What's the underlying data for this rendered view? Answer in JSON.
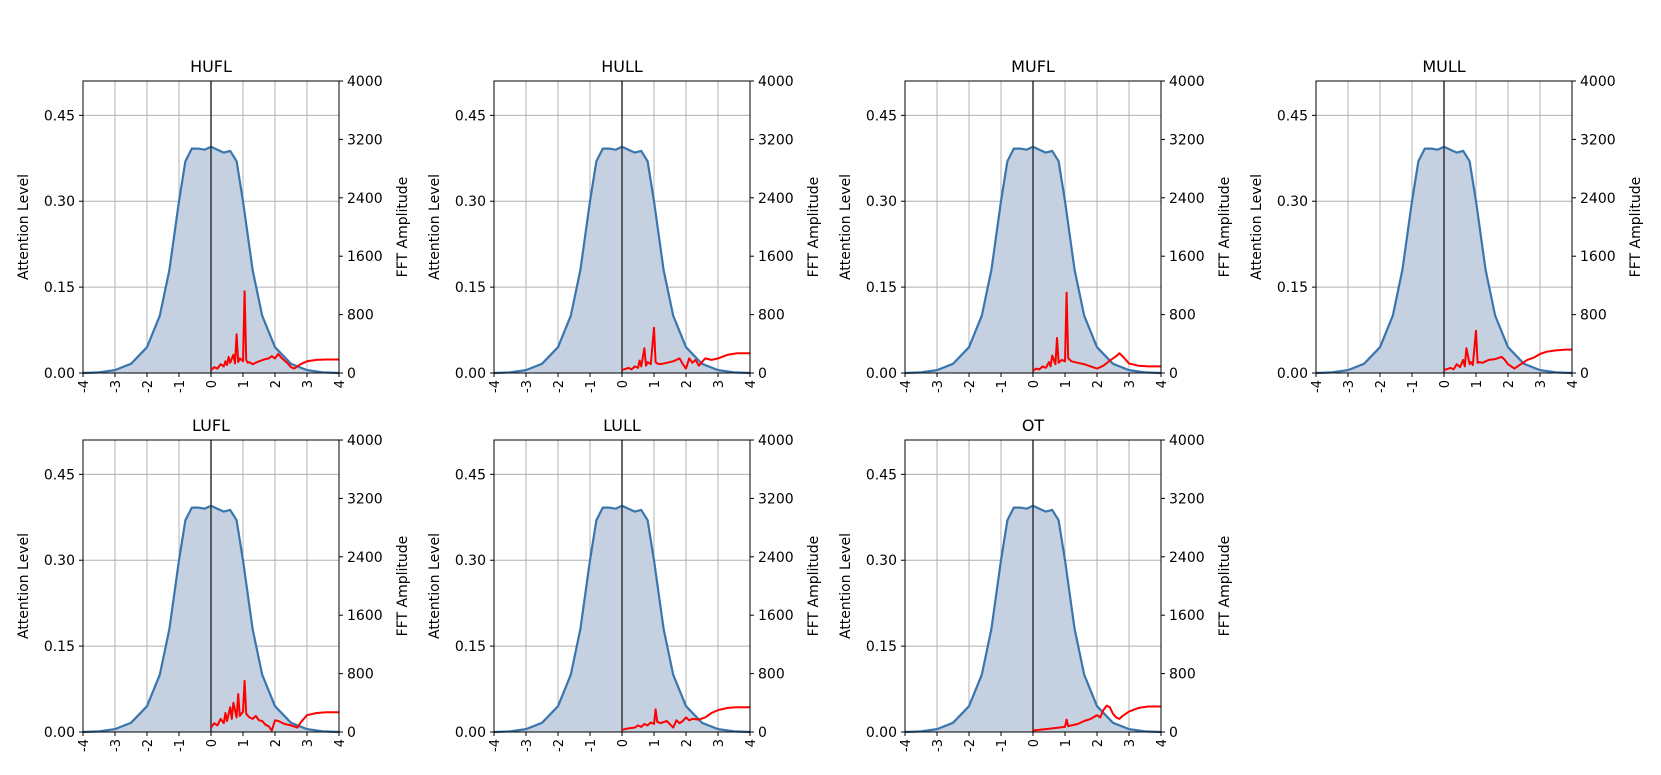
{
  "colors": {
    "attention_line": "#3a76ae",
    "attention_fill": "#c5d0e0",
    "fft_line": "#ff0000",
    "grid": "#b0b0b0",
    "zero_line": "#333333"
  },
  "chart_data": [
    {
      "type": "area",
      "title": "HUFL",
      "ylabel": "Attention Level",
      "y2label": "FFT Amplitude",
      "xlim": [
        -4,
        4
      ],
      "ylim": [
        0,
        0.51
      ],
      "y2lim": [
        0,
        4000
      ],
      "xticks": [
        "-4",
        "-3",
        "-2",
        "-1",
        "0",
        "1",
        "2",
        "3",
        "4"
      ],
      "yticks": [
        "0.00",
        "0.15",
        "0.30",
        "0.45"
      ],
      "y2ticks": [
        "0",
        "800",
        "1600",
        "2400",
        "3200",
        "4000"
      ],
      "grid": true,
      "attention": {
        "peak": 0.395,
        "x": [
          -4.0,
          -3.5,
          -3.0,
          -2.5,
          -2.0,
          -1.6,
          -1.3,
          -1.0,
          -0.8,
          -0.6,
          -0.4,
          -0.2,
          0.0,
          0.2,
          0.4,
          0.6,
          0.8,
          1.0,
          1.3,
          1.6,
          2.0,
          2.5,
          3.0,
          3.5,
          4.0
        ],
        "y": [
          0.0,
          0.001,
          0.005,
          0.016,
          0.045,
          0.1,
          0.18,
          0.3,
          0.37,
          0.392,
          0.392,
          0.39,
          0.395,
          0.39,
          0.385,
          0.388,
          0.37,
          0.3,
          0.18,
          0.1,
          0.045,
          0.016,
          0.005,
          0.001,
          0.0
        ]
      },
      "fft": {
        "x": [
          0.0,
          0.1,
          0.2,
          0.3,
          0.4,
          0.45,
          0.5,
          0.55,
          0.6,
          0.7,
          0.75,
          0.8,
          0.85,
          0.9,
          1.0,
          1.05,
          1.1,
          1.15,
          1.2,
          1.3,
          1.5,
          1.7,
          1.8,
          1.9,
          2.0,
          2.1,
          2.2,
          2.3,
          2.4,
          2.5,
          2.6,
          2.8,
          3.0,
          3.3,
          3.6,
          4.0
        ],
        "y": [
          40,
          80,
          60,
          120,
          90,
          160,
          110,
          220,
          140,
          250,
          130,
          530,
          150,
          200,
          160,
          1120,
          180,
          140,
          150,
          120,
          160,
          190,
          200,
          230,
          200,
          260,
          210,
          170,
          130,
          80,
          60,
          120,
          160,
          180,
          185,
          185
        ]
      }
    },
    {
      "type": "area",
      "title": "HULL",
      "ylabel": "Attention Level",
      "y2label": "FFT Amplitude",
      "xlim": [
        -4,
        4
      ],
      "ylim": [
        0,
        0.51
      ],
      "y2lim": [
        0,
        4000
      ],
      "xticks": [
        "-4",
        "-3",
        "-2",
        "-1",
        "0",
        "1",
        "2",
        "3",
        "4"
      ],
      "yticks": [
        "0.00",
        "0.15",
        "0.30",
        "0.45"
      ],
      "y2ticks": [
        "0",
        "800",
        "1600",
        "2400",
        "3200",
        "4000"
      ],
      "grid": true,
      "attention": {
        "peak": 0.395,
        "x": [
          -4.0,
          -3.5,
          -3.0,
          -2.5,
          -2.0,
          -1.6,
          -1.3,
          -1.0,
          -0.8,
          -0.6,
          -0.4,
          -0.2,
          0.0,
          0.2,
          0.4,
          0.6,
          0.8,
          1.0,
          1.3,
          1.6,
          2.0,
          2.5,
          3.0,
          3.5,
          4.0
        ],
        "y": [
          0.0,
          0.001,
          0.005,
          0.016,
          0.045,
          0.1,
          0.18,
          0.3,
          0.37,
          0.392,
          0.392,
          0.39,
          0.395,
          0.39,
          0.385,
          0.388,
          0.37,
          0.3,
          0.18,
          0.1,
          0.045,
          0.016,
          0.005,
          0.001,
          0.0
        ]
      },
      "fft": {
        "x": [
          0.0,
          0.2,
          0.3,
          0.4,
          0.5,
          0.55,
          0.6,
          0.7,
          0.75,
          0.8,
          0.9,
          1.0,
          1.05,
          1.1,
          1.2,
          1.4,
          1.6,
          1.8,
          1.9,
          2.0,
          2.1,
          2.2,
          2.3,
          2.4,
          2.5,
          2.6,
          2.8,
          3.0,
          3.3,
          3.6,
          4.0
        ],
        "y": [
          40,
          70,
          50,
          90,
          70,
          170,
          90,
          340,
          100,
          150,
          120,
          620,
          150,
          130,
          120,
          140,
          160,
          200,
          120,
          60,
          200,
          140,
          180,
          100,
          150,
          200,
          180,
          200,
          250,
          270,
          270
        ]
      }
    },
    {
      "type": "area",
      "title": "MUFL",
      "ylabel": "Attention Level",
      "y2label": "FFT Amplitude",
      "xlim": [
        -4,
        4
      ],
      "ylim": [
        0,
        0.51
      ],
      "y2lim": [
        0,
        4000
      ],
      "xticks": [
        "-4",
        "-3",
        "-2",
        "-1",
        "0",
        "1",
        "2",
        "3",
        "4"
      ],
      "yticks": [
        "0.00",
        "0.15",
        "0.30",
        "0.45"
      ],
      "y2ticks": [
        "0",
        "800",
        "1600",
        "2400",
        "3200",
        "4000"
      ],
      "grid": true,
      "attention": {
        "peak": 0.395,
        "x": [
          -4.0,
          -3.5,
          -3.0,
          -2.5,
          -2.0,
          -1.6,
          -1.3,
          -1.0,
          -0.8,
          -0.6,
          -0.4,
          -0.2,
          0.0,
          0.2,
          0.4,
          0.6,
          0.8,
          1.0,
          1.3,
          1.6,
          2.0,
          2.5,
          3.0,
          3.5,
          4.0
        ],
        "y": [
          0.0,
          0.001,
          0.005,
          0.016,
          0.045,
          0.1,
          0.18,
          0.3,
          0.37,
          0.392,
          0.392,
          0.39,
          0.395,
          0.39,
          0.385,
          0.388,
          0.37,
          0.3,
          0.18,
          0.1,
          0.045,
          0.016,
          0.005,
          0.001,
          0.0
        ]
      },
      "fft": {
        "x": [
          0.0,
          0.1,
          0.2,
          0.3,
          0.4,
          0.5,
          0.55,
          0.6,
          0.7,
          0.75,
          0.8,
          0.9,
          1.0,
          1.05,
          1.1,
          1.2,
          1.4,
          1.6,
          1.8,
          2.0,
          2.2,
          2.4,
          2.6,
          2.7,
          2.8,
          3.0,
          3.3,
          3.6,
          4.0
        ],
        "y": [
          30,
          60,
          50,
          90,
          70,
          150,
          90,
          240,
          120,
          480,
          140,
          180,
          160,
          1100,
          200,
          160,
          140,
          120,
          90,
          60,
          100,
          170,
          230,
          270,
          230,
          130,
          100,
          90,
          90
        ]
      }
    },
    {
      "type": "area",
      "title": "MULL",
      "ylabel": "Attention Level",
      "y2label": "FFT Amplitude",
      "xlim": [
        -4,
        4
      ],
      "ylim": [
        0,
        0.51
      ],
      "y2lim": [
        0,
        4000
      ],
      "xticks": [
        "-4",
        "-3",
        "-2",
        "-1",
        "0",
        "1",
        "2",
        "3",
        "4"
      ],
      "yticks": [
        "0.00",
        "0.15",
        "0.30",
        "0.45"
      ],
      "y2ticks": [
        "0",
        "800",
        "1600",
        "2400",
        "3200",
        "4000"
      ],
      "grid": true,
      "attention": {
        "peak": 0.395,
        "x": [
          -4.0,
          -3.5,
          -3.0,
          -2.5,
          -2.0,
          -1.6,
          -1.3,
          -1.0,
          -0.8,
          -0.6,
          -0.4,
          -0.2,
          0.0,
          0.2,
          0.4,
          0.6,
          0.8,
          1.0,
          1.3,
          1.6,
          2.0,
          2.5,
          3.0,
          3.5,
          4.0
        ],
        "y": [
          0.0,
          0.001,
          0.005,
          0.016,
          0.045,
          0.1,
          0.18,
          0.3,
          0.37,
          0.392,
          0.392,
          0.39,
          0.395,
          0.39,
          0.385,
          0.388,
          0.37,
          0.3,
          0.18,
          0.1,
          0.045,
          0.016,
          0.005,
          0.001,
          0.0
        ]
      },
      "fft": {
        "x": [
          0.0,
          0.2,
          0.3,
          0.4,
          0.5,
          0.6,
          0.65,
          0.7,
          0.8,
          0.85,
          0.9,
          1.0,
          1.05,
          1.1,
          1.2,
          1.4,
          1.6,
          1.8,
          1.9,
          2.0,
          2.2,
          2.4,
          2.6,
          2.8,
          3.0,
          3.2,
          3.5,
          3.8,
          4.0
        ],
        "y": [
          40,
          70,
          50,
          120,
          80,
          180,
          90,
          340,
          120,
          150,
          110,
          580,
          140,
          150,
          140,
          180,
          190,
          220,
          180,
          120,
          60,
          120,
          180,
          210,
          260,
          290,
          310,
          320,
          320
        ]
      }
    },
    {
      "type": "area",
      "title": "LUFL",
      "ylabel": "Attention Level",
      "y2label": "FFT Amplitude",
      "xlim": [
        -4,
        4
      ],
      "ylim": [
        0,
        0.51
      ],
      "y2lim": [
        0,
        4000
      ],
      "xticks": [
        "-4",
        "-3",
        "-2",
        "-1",
        "0",
        "1",
        "2",
        "3",
        "4"
      ],
      "yticks": [
        "0.00",
        "0.15",
        "0.30",
        "0.45"
      ],
      "y2ticks": [
        "0",
        "800",
        "1600",
        "2400",
        "3200",
        "4000"
      ],
      "grid": true,
      "attention": {
        "peak": 0.395,
        "x": [
          -4.0,
          -3.5,
          -3.0,
          -2.5,
          -2.0,
          -1.6,
          -1.3,
          -1.0,
          -0.8,
          -0.6,
          -0.4,
          -0.2,
          0.0,
          0.2,
          0.4,
          0.6,
          0.8,
          1.0,
          1.3,
          1.6,
          2.0,
          2.5,
          3.0,
          3.5,
          4.0
        ],
        "y": [
          0.0,
          0.001,
          0.005,
          0.016,
          0.045,
          0.1,
          0.18,
          0.3,
          0.37,
          0.392,
          0.392,
          0.39,
          0.395,
          0.39,
          0.385,
          0.388,
          0.37,
          0.3,
          0.18,
          0.1,
          0.045,
          0.016,
          0.005,
          0.001,
          0.0
        ]
      },
      "fft": {
        "x": [
          0.0,
          0.1,
          0.2,
          0.3,
          0.4,
          0.45,
          0.5,
          0.6,
          0.65,
          0.7,
          0.8,
          0.85,
          0.9,
          1.0,
          1.05,
          1.1,
          1.2,
          1.3,
          1.4,
          1.5,
          1.6,
          1.7,
          1.8,
          1.9,
          2.0,
          2.1,
          2.3,
          2.5,
          2.7,
          2.8,
          3.0,
          3.3,
          3.6,
          4.0
        ],
        "y": [
          60,
          120,
          90,
          180,
          120,
          260,
          150,
          340,
          180,
          400,
          200,
          520,
          220,
          280,
          700,
          250,
          200,
          180,
          220,
          160,
          150,
          100,
          80,
          20,
          160,
          150,
          110,
          90,
          60,
          130,
          230,
          260,
          270,
          270
        ]
      }
    },
    {
      "type": "area",
      "title": "LULL",
      "ylabel": "Attention Level",
      "y2label": "FFT Amplitude",
      "xlim": [
        -4,
        4
      ],
      "ylim": [
        0,
        0.51
      ],
      "y2lim": [
        0,
        4000
      ],
      "xticks": [
        "-4",
        "-3",
        "-2",
        "-1",
        "0",
        "1",
        "2",
        "3",
        "4"
      ],
      "yticks": [
        "0.00",
        "0.15",
        "0.30",
        "0.45"
      ],
      "y2ticks": [
        "0",
        "800",
        "1600",
        "2400",
        "3200",
        "4000"
      ],
      "grid": true,
      "attention": {
        "peak": 0.395,
        "x": [
          -4.0,
          -3.5,
          -3.0,
          -2.5,
          -2.0,
          -1.6,
          -1.3,
          -1.0,
          -0.8,
          -0.6,
          -0.4,
          -0.2,
          0.0,
          0.2,
          0.4,
          0.6,
          0.8,
          1.0,
          1.3,
          1.6,
          2.0,
          2.5,
          3.0,
          3.5,
          4.0
        ],
        "y": [
          0.0,
          0.001,
          0.005,
          0.016,
          0.045,
          0.1,
          0.18,
          0.3,
          0.37,
          0.392,
          0.392,
          0.39,
          0.395,
          0.39,
          0.385,
          0.388,
          0.37,
          0.3,
          0.18,
          0.1,
          0.045,
          0.016,
          0.005,
          0.001,
          0.0
        ]
      },
      "fft": {
        "x": [
          0.0,
          0.2,
          0.4,
          0.5,
          0.6,
          0.7,
          0.8,
          0.9,
          1.0,
          1.05,
          1.1,
          1.2,
          1.4,
          1.6,
          1.7,
          1.8,
          1.9,
          2.0,
          2.1,
          2.2,
          2.4,
          2.6,
          2.8,
          3.0,
          3.3,
          3.6,
          4.0
        ],
        "y": [
          30,
          50,
          60,
          90,
          70,
          110,
          90,
          130,
          110,
          310,
          140,
          120,
          150,
          60,
          160,
          120,
          150,
          200,
          160,
          180,
          170,
          200,
          260,
          300,
          330,
          340,
          340
        ]
      }
    },
    {
      "type": "area",
      "title": "OT",
      "ylabel": "Attention Level",
      "y2label": "FFT Amplitude",
      "xlim": [
        -4,
        4
      ],
      "ylim": [
        0,
        0.51
      ],
      "y2lim": [
        0,
        4000
      ],
      "xticks": [
        "-4",
        "-3",
        "-2",
        "-1",
        "0",
        "1",
        "2",
        "3",
        "4"
      ],
      "yticks": [
        "0.00",
        "0.15",
        "0.30",
        "0.45"
      ],
      "y2ticks": [
        "0",
        "800",
        "1600",
        "2400",
        "3200",
        "4000"
      ],
      "grid": true,
      "attention": {
        "peak": 0.395,
        "x": [
          -4.0,
          -3.5,
          -3.0,
          -2.5,
          -2.0,
          -1.6,
          -1.3,
          -1.0,
          -0.8,
          -0.6,
          -0.4,
          -0.2,
          0.0,
          0.2,
          0.4,
          0.6,
          0.8,
          1.0,
          1.3,
          1.6,
          2.0,
          2.5,
          3.0,
          3.5,
          4.0
        ],
        "y": [
          0.0,
          0.001,
          0.005,
          0.016,
          0.045,
          0.1,
          0.18,
          0.3,
          0.37,
          0.392,
          0.392,
          0.39,
          0.395,
          0.39,
          0.385,
          0.388,
          0.37,
          0.3,
          0.18,
          0.1,
          0.045,
          0.016,
          0.005,
          0.001,
          0.0
        ]
      },
      "fft": {
        "x": [
          0.0,
          0.2,
          0.4,
          0.6,
          0.8,
          1.0,
          1.05,
          1.1,
          1.2,
          1.4,
          1.6,
          1.8,
          2.0,
          2.1,
          2.2,
          2.3,
          2.4,
          2.5,
          2.6,
          2.7,
          2.8,
          3.0,
          3.3,
          3.6,
          4.0
        ],
        "y": [
          20,
          30,
          40,
          50,
          60,
          70,
          170,
          80,
          90,
          110,
          150,
          180,
          230,
          200,
          300,
          360,
          340,
          250,
          200,
          180,
          220,
          280,
          330,
          350,
          350
        ]
      }
    }
  ]
}
